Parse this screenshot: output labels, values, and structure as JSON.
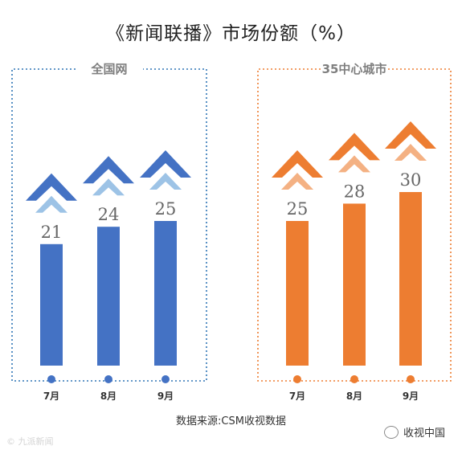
{
  "title": "《新闻联播》市场份额（%）",
  "source": "数据来源:CSM收视数据",
  "watermark_left": "© 九派新闻",
  "watermark_right": "收视中国",
  "colors": {
    "blue": "#4472C4",
    "blue_light": "#9DC3E6",
    "orange": "#ED7D31",
    "orange_light": "#F4B183",
    "blue_border": "#2E75B6",
    "orange_border": "#ED7D31"
  },
  "chart_data": [
    {
      "type": "bar",
      "panel_label": "全国网",
      "categories": [
        "7月",
        "8月",
        "9月"
      ],
      "values": [
        21,
        24,
        25
      ],
      "color": "blue",
      "light": "blue_light"
    },
    {
      "type": "bar",
      "panel_label": "35中心城市",
      "categories": [
        "7月",
        "8月",
        "9月"
      ],
      "values": [
        25,
        28,
        30
      ],
      "color": "orange",
      "light": "orange_light"
    }
  ]
}
